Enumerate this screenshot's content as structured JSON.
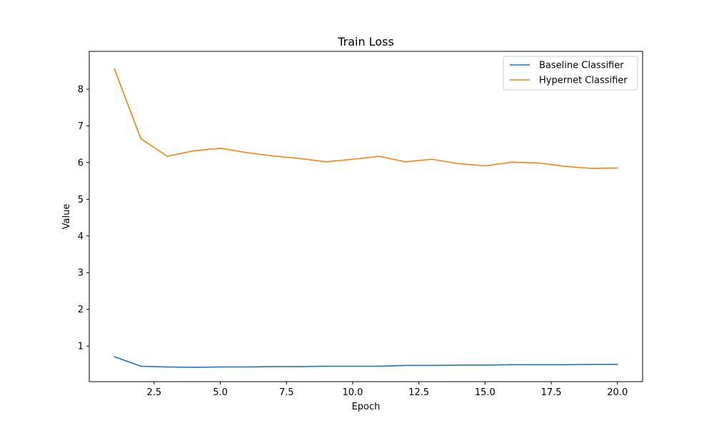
{
  "chart_data": {
    "type": "line",
    "title": "Train Loss",
    "xlabel": "Epoch",
    "ylabel": "Value",
    "xlim": [
      0.05,
      20.95
    ],
    "ylim": [
      0.03,
      9.03
    ],
    "x_ticks": [
      2.5,
      5.0,
      7.5,
      10.0,
      12.5,
      15.0,
      17.5,
      20.0
    ],
    "x_tick_labels": [
      "2.5",
      "5.0",
      "7.5",
      "10.0",
      "12.5",
      "15.0",
      "17.5",
      "20.0"
    ],
    "y_ticks": [
      1,
      2,
      3,
      4,
      5,
      6,
      7,
      8
    ],
    "y_tick_labels": [
      "1",
      "2",
      "3",
      "4",
      "5",
      "6",
      "7",
      "8"
    ],
    "grid": false,
    "legend_position": "top-right",
    "x": [
      1,
      2,
      3,
      4,
      5,
      6,
      7,
      8,
      9,
      10,
      11,
      12,
      13,
      14,
      15,
      16,
      17,
      18,
      19,
      20
    ],
    "series": [
      {
        "name": "Baseline Classifier",
        "color": "#1f77b4",
        "values": [
          0.71,
          0.45,
          0.43,
          0.42,
          0.43,
          0.43,
          0.44,
          0.44,
          0.45,
          0.45,
          0.45,
          0.47,
          0.47,
          0.48,
          0.48,
          0.49,
          0.49,
          0.49,
          0.5,
          0.5
        ]
      },
      {
        "name": "Hypernet Classifier",
        "color": "#ff7f0e",
        "values": [
          8.55,
          6.65,
          6.17,
          6.32,
          6.39,
          6.27,
          6.18,
          6.11,
          6.02,
          6.09,
          6.17,
          6.02,
          6.09,
          5.97,
          5.91,
          6.01,
          5.99,
          5.9,
          5.84,
          5.85
        ]
      }
    ]
  }
}
